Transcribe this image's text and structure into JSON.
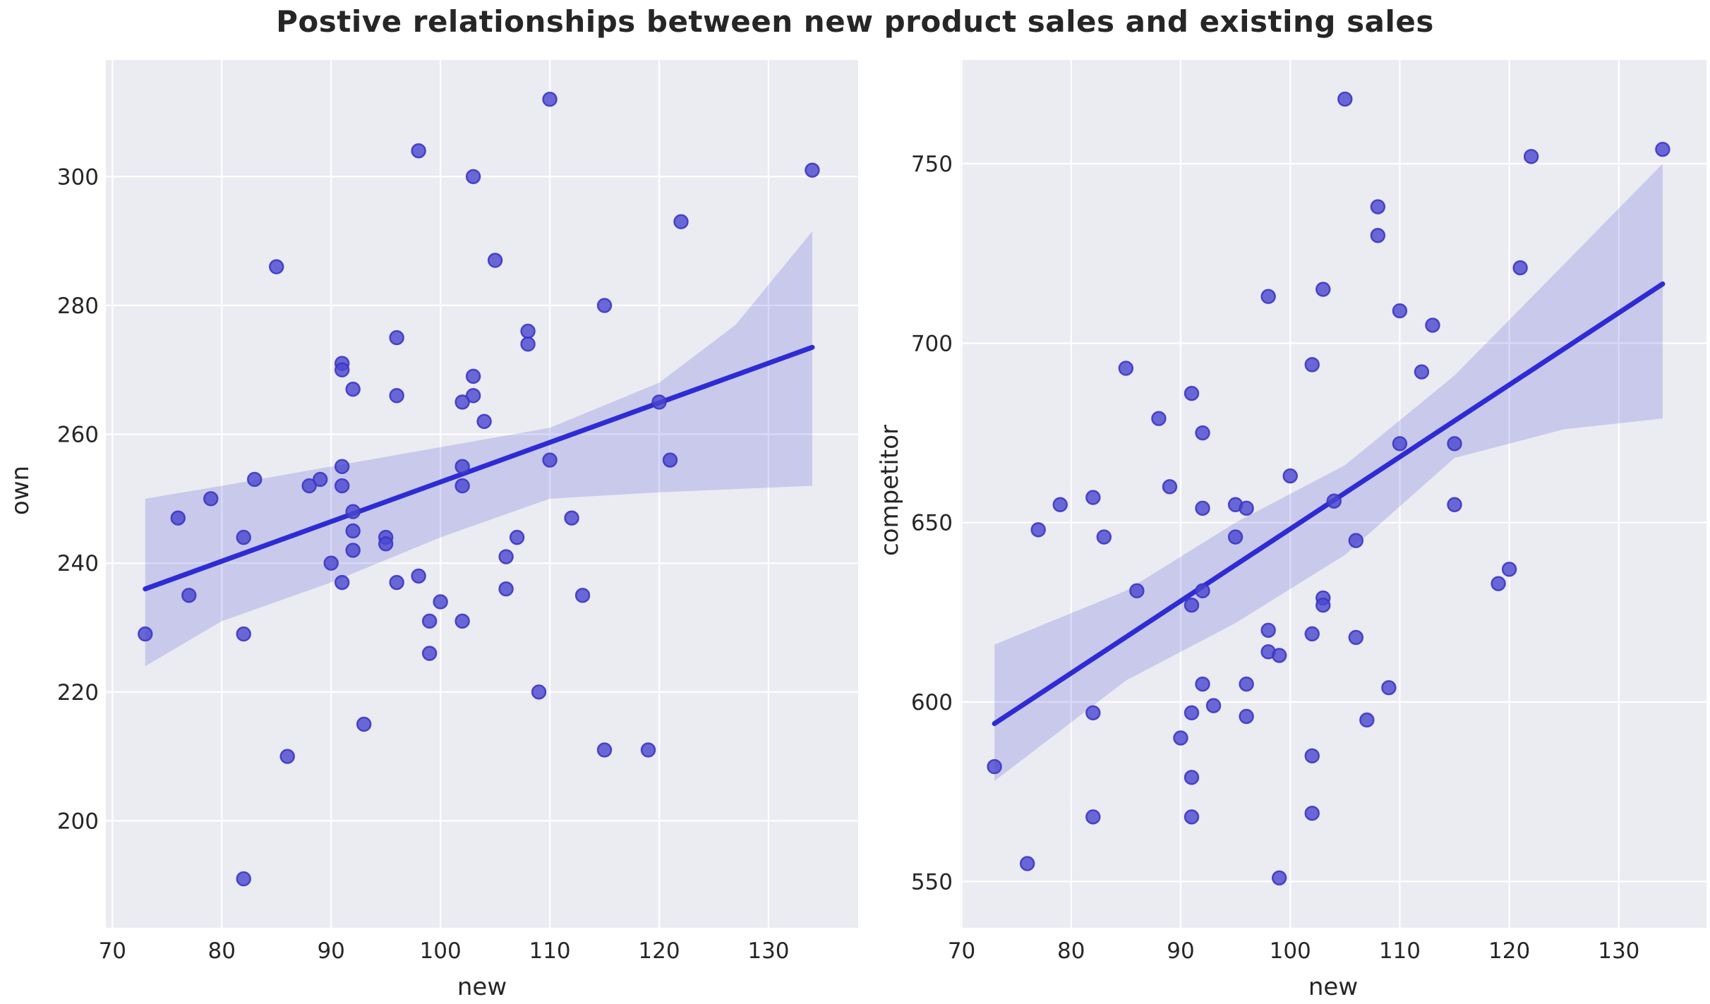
{
  "title": "Postive relationships between new product sales and existing sales",
  "colors": {
    "figure_bg": "#ffffff",
    "plot_bg": "#ebebf2",
    "grid": "#ffffff",
    "point_fill": "#4c48d0",
    "point_edge": "#3a36c4",
    "reg_line": "#2f2bd4",
    "ci_band": "#3230d0",
    "text": "#262626"
  },
  "chart_data": [
    {
      "type": "scatter",
      "xlabel": "new",
      "ylabel": "own",
      "x_ticks": [
        70,
        80,
        90,
        100,
        110,
        120,
        130
      ],
      "y_ticks": [
        200,
        220,
        240,
        260,
        280,
        300
      ],
      "xlim": [
        69.4,
        138.2
      ],
      "ylim": [
        183.4,
        318.1
      ],
      "grid": true,
      "legend": "none",
      "points": [
        [
          110,
          312
        ],
        [
          98,
          304
        ],
        [
          134,
          301
        ],
        [
          103,
          300
        ],
        [
          122,
          293
        ],
        [
          105,
          287
        ],
        [
          85,
          286
        ],
        [
          115,
          280
        ],
        [
          108,
          276
        ],
        [
          96,
          275
        ],
        [
          108,
          274
        ],
        [
          91,
          271
        ],
        [
          103,
          269
        ],
        [
          91,
          270
        ],
        [
          92,
          267
        ],
        [
          103,
          266
        ],
        [
          96,
          266
        ],
        [
          102,
          265
        ],
        [
          120,
          265
        ],
        [
          104,
          262
        ],
        [
          110,
          256
        ],
        [
          121,
          256
        ],
        [
          91,
          255
        ],
        [
          102,
          255
        ],
        [
          83,
          253
        ],
        [
          89,
          253
        ],
        [
          88,
          252
        ],
        [
          91,
          252
        ],
        [
          102,
          252
        ],
        [
          79,
          250
        ],
        [
          92,
          248
        ],
        [
          76,
          247
        ],
        [
          112,
          247
        ],
        [
          92,
          245
        ],
        [
          95,
          244
        ],
        [
          82,
          244
        ],
        [
          107,
          244
        ],
        [
          95,
          243
        ],
        [
          92,
          242
        ],
        [
          106,
          241
        ],
        [
          90,
          240
        ],
        [
          98,
          238
        ],
        [
          91,
          237
        ],
        [
          96,
          237
        ],
        [
          106,
          236
        ],
        [
          113,
          235
        ],
        [
          77,
          235
        ],
        [
          100,
          234
        ],
        [
          99,
          231
        ],
        [
          102,
          231
        ],
        [
          73,
          229
        ],
        [
          82,
          229
        ],
        [
          99,
          226
        ],
        [
          109,
          220
        ],
        [
          93,
          215
        ],
        [
          115,
          211
        ],
        [
          119,
          211
        ],
        [
          86,
          210
        ],
        [
          82,
          191
        ]
      ],
      "regression_line": {
        "x": [
          73,
          134
        ],
        "y": [
          236,
          273.5
        ]
      },
      "ci_band": {
        "x": [
          73,
          80,
          90,
          100,
          110,
          120,
          127,
          134
        ],
        "lower": [
          224,
          231,
          237,
          244,
          250,
          251,
          251.5,
          252
        ],
        "upper": [
          250,
          252,
          255,
          258,
          261,
          268,
          277,
          291.5
        ]
      }
    },
    {
      "type": "scatter",
      "xlabel": "new",
      "ylabel": "competitor",
      "x_ticks": [
        70,
        80,
        90,
        100,
        110,
        120,
        130
      ],
      "y_ticks": [
        550,
        600,
        650,
        700,
        750
      ],
      "xlim": [
        69.9,
        138.0
      ],
      "ylim": [
        537.1,
        778.9
      ],
      "grid": true,
      "legend": "none",
      "points": [
        [
          105,
          768
        ],
        [
          134,
          754
        ],
        [
          122,
          752
        ],
        [
          108,
          738
        ],
        [
          108,
          730
        ],
        [
          121,
          721
        ],
        [
          103,
          715
        ],
        [
          98,
          713
        ],
        [
          110,
          709
        ],
        [
          113,
          705
        ],
        [
          102,
          694
        ],
        [
          85,
          693
        ],
        [
          112,
          692
        ],
        [
          91,
          686
        ],
        [
          88,
          679
        ],
        [
          92,
          675
        ],
        [
          110,
          672
        ],
        [
          115,
          672
        ],
        [
          100,
          663
        ],
        [
          89,
          660
        ],
        [
          82,
          657
        ],
        [
          104,
          656
        ],
        [
          95,
          655
        ],
        [
          79,
          655
        ],
        [
          115,
          655
        ],
        [
          92,
          654
        ],
        [
          96,
          654
        ],
        [
          77,
          648
        ],
        [
          83,
          646
        ],
        [
          95,
          646
        ],
        [
          106,
          645
        ],
        [
          120,
          637
        ],
        [
          119,
          633
        ],
        [
          86,
          631
        ],
        [
          92,
          631
        ],
        [
          103,
          629
        ],
        [
          103,
          627
        ],
        [
          91,
          627
        ],
        [
          98,
          620
        ],
        [
          102,
          619
        ],
        [
          106,
          618
        ],
        [
          98,
          614
        ],
        [
          99,
          613
        ],
        [
          92,
          605
        ],
        [
          96,
          605
        ],
        [
          109,
          604
        ],
        [
          93,
          599
        ],
        [
          91,
          597
        ],
        [
          82,
          597
        ],
        [
          96,
          596
        ],
        [
          107,
          595
        ],
        [
          90,
          590
        ],
        [
          102,
          585
        ],
        [
          73,
          582
        ],
        [
          91,
          579
        ],
        [
          102,
          569
        ],
        [
          82,
          568
        ],
        [
          91,
          568
        ],
        [
          76,
          555
        ],
        [
          99,
          551
        ]
      ],
      "regression_line": {
        "x": [
          73,
          134
        ],
        "y": [
          594,
          716.5
        ]
      },
      "ci_band": {
        "x": [
          73,
          85,
          95,
          105,
          115,
          125,
          134
        ],
        "lower": [
          578,
          606,
          622,
          641,
          668,
          676,
          679
        ],
        "upper": [
          616,
          631,
          650,
          666,
          691,
          722,
          750
        ]
      }
    }
  ]
}
